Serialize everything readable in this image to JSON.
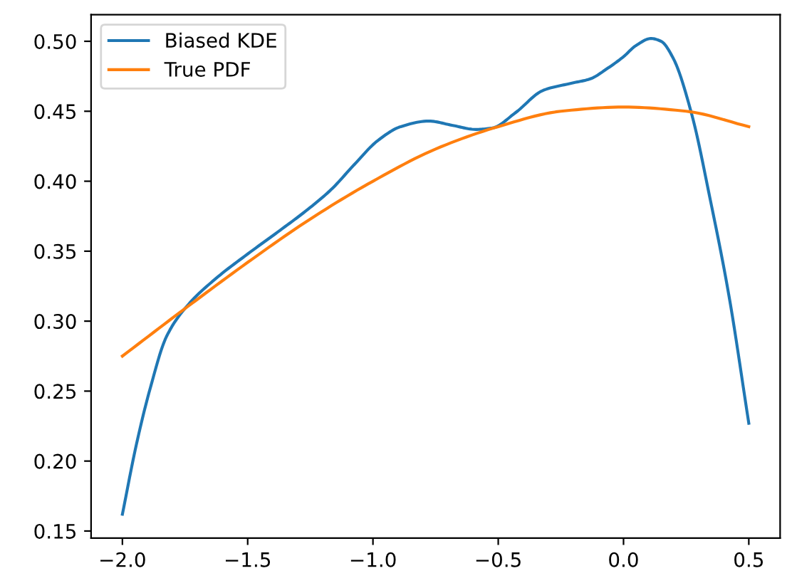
{
  "chart_data": {
    "type": "line",
    "legend": "top left",
    "grid": false,
    "xlim": [
      -2.125,
      0.625
    ],
    "ylim": [
      0.145,
      0.519
    ],
    "xticks": [
      {
        "value": -2.0,
        "label": "−2.0"
      },
      {
        "value": -1.5,
        "label": "−1.5"
      },
      {
        "value": -1.0,
        "label": "−1.0"
      },
      {
        "value": -0.5,
        "label": "−0.5"
      },
      {
        "value": 0.0,
        "label": "0.0"
      },
      {
        "value": 0.5,
        "label": "0.5"
      }
    ],
    "yticks": [
      {
        "value": 0.15,
        "label": "0.15"
      },
      {
        "value": 0.2,
        "label": "0.20"
      },
      {
        "value": 0.25,
        "label": "0.25"
      },
      {
        "value": 0.3,
        "label": "0.30"
      },
      {
        "value": 0.35,
        "label": "0.35"
      },
      {
        "value": 0.4,
        "label": "0.40"
      },
      {
        "value": 0.45,
        "label": "0.45"
      },
      {
        "value": 0.5,
        "label": "0.50"
      }
    ],
    "series": [
      {
        "name": "Biased KDE",
        "color": "#1f77b4",
        "x": [
          -2.0,
          -1.944,
          -1.889,
          -1.824,
          -1.741,
          -1.63,
          -1.5,
          -1.37,
          -1.259,
          -1.167,
          -1.074,
          -0.981,
          -0.889,
          -0.778,
          -0.685,
          -0.589,
          -0.524,
          -0.431,
          -0.32,
          -0.209,
          -0.135,
          -0.061,
          0.0,
          0.05,
          0.11,
          0.15,
          0.198,
          0.272,
          0.346,
          0.42,
          0.5
        ],
        "values": [
          0.162,
          0.212,
          0.252,
          0.289,
          0.311,
          0.33,
          0.348,
          0.365,
          0.38,
          0.394,
          0.412,
          0.429,
          0.439,
          0.443,
          0.44,
          0.437,
          0.438,
          0.449,
          0.465,
          0.47,
          0.473,
          0.481,
          0.489,
          0.497,
          0.502,
          0.5,
          0.488,
          0.448,
          0.387,
          0.319,
          0.227
        ]
      },
      {
        "name": "True PDF",
        "color": "#ff7f0e",
        "x": [
          -2.0,
          -1.75,
          -1.5,
          -1.25,
          -1.0,
          -0.75,
          -0.5,
          -0.25,
          0.0,
          0.25,
          0.5
        ],
        "values": [
          0.275,
          0.309,
          0.342,
          0.373,
          0.4,
          0.423,
          0.439,
          0.45,
          0.453,
          0.45,
          0.439
        ]
      }
    ]
  }
}
